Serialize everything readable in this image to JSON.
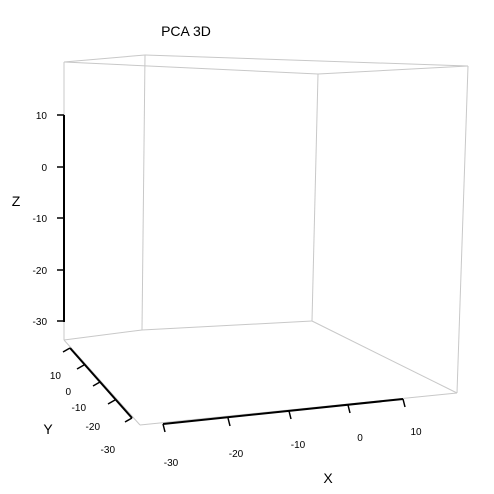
{
  "chart_data": {
    "type": "scatter",
    "title": "PCA 3D",
    "xlabel": "X",
    "ylabel": "Y",
    "zlabel": "Z",
    "x_ticks": [
      "-30",
      "-20",
      "-10",
      "0",
      "10"
    ],
    "y_ticks": [
      "-30",
      "-20",
      "-10",
      "0",
      "10"
    ],
    "z_ticks": [
      "10",
      "0",
      "-10",
      "-20",
      "-30"
    ],
    "points": []
  }
}
